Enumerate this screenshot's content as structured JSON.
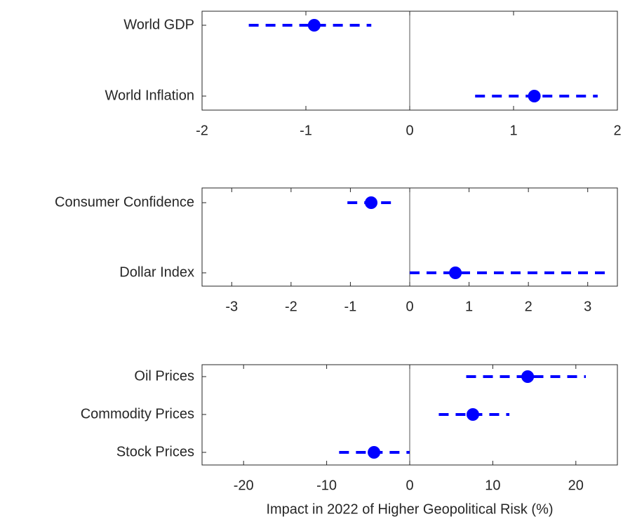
{
  "chart_data": [
    {
      "type": "dot",
      "categories": [
        "World GDP",
        "World Inflation"
      ],
      "values": [
        -0.92,
        1.2
      ],
      "lower": [
        -1.55,
        0.63
      ],
      "upper": [
        -0.37,
        1.81
      ],
      "color": "#0000ff",
      "xlim": [
        -2,
        2
      ],
      "xticks": [
        -2,
        -1,
        0,
        1,
        2
      ],
      "zero_line": true
    },
    {
      "type": "dot",
      "categories": [
        "Consumer Confidence",
        "Dollar Index"
      ],
      "values": [
        -0.65,
        0.77
      ],
      "lower": [
        -1.05,
        0
      ],
      "upper": [
        -0.25,
        3.3
      ],
      "color": "#0000ff",
      "xlim": [
        -3.5,
        3.5
      ],
      "xticks": [
        -3,
        -2,
        -1,
        0,
        1,
        2,
        3
      ],
      "zero_line": true
    },
    {
      "type": "dot",
      "categories": [
        "Oil Prices",
        "Commodity Prices",
        "Stock Prices"
      ],
      "values": [
        14.2,
        7.6,
        -4.3
      ],
      "lower": [
        6.8,
        3.5,
        -8.5
      ],
      "upper": [
        21.2,
        12,
        0
      ],
      "color": "#0000ff",
      "xlim": [
        -25,
        25
      ],
      "xticks": [
        -20,
        -10,
        0,
        10,
        20
      ],
      "zero_line": true,
      "xlabel": "Impact in 2022 of Higher Geopolitical Risk (%)"
    }
  ]
}
